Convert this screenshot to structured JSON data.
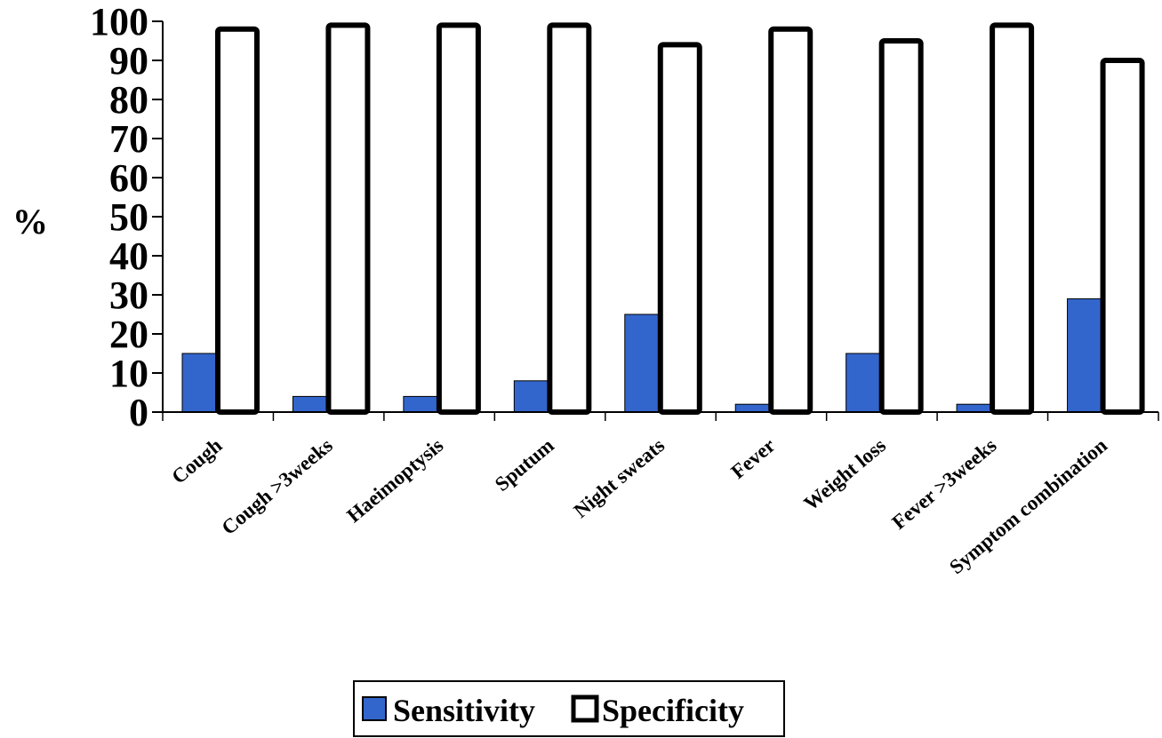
{
  "chart_data": {
    "type": "bar",
    "categories": [
      "Cough",
      "Cough >3weeks",
      "Haeimoptysis",
      "Sputum",
      "Night sweats",
      "Fever",
      "Weight loss",
      "Fever  >3weeks",
      "Symptom combination"
    ],
    "series": [
      {
        "name": "Sensitivity",
        "values": [
          15,
          4,
          4,
          8,
          25,
          2,
          15,
          2,
          29
        ],
        "color": "#3366cc"
      },
      {
        "name": "Specificity",
        "values": [
          98,
          99,
          99,
          99,
          94,
          98,
          95,
          99,
          90
        ],
        "color": "#ffffff"
      }
    ],
    "ylabel": "%",
    "xlabel": "",
    "title": "",
    "ylim": [
      0,
      100
    ],
    "yticks": [
      "0",
      "10",
      "20",
      "30",
      "40",
      "50",
      "60",
      "70",
      "80",
      "90",
      "100"
    ],
    "grid": false,
    "legend_position": "bottom"
  }
}
